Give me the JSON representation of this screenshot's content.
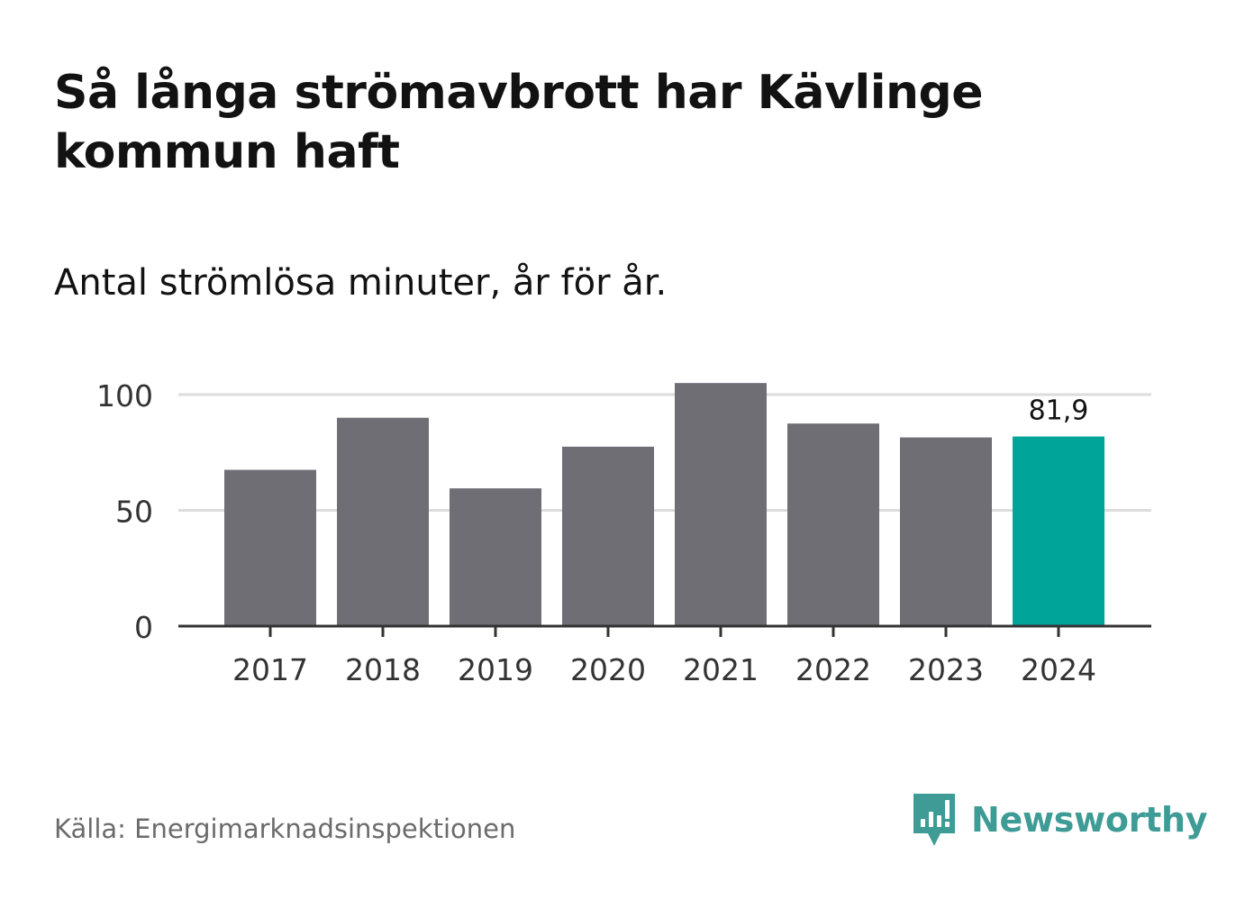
{
  "header": {
    "title": "Så långa strömavbrott har Kävlinge kommun haft",
    "subtitle": "Antal strömlösa minuter, år för år."
  },
  "footer": {
    "source": "Källa: Energimarknadsinspektionen",
    "brand_name": "Newsworthy",
    "brand_icon": "newsworthy-logo-icon"
  },
  "colors": {
    "bar": "#6f6e75",
    "highlight": "#00a499",
    "gridline": "#dcdcdc",
    "axis": "#333333",
    "brand": "#3e9b95"
  },
  "chart_data": {
    "type": "bar",
    "title": "Så långa strömavbrott har Kävlinge kommun haft",
    "subtitle": "Antal strömlösa minuter, år för år.",
    "xlabel": "",
    "ylabel": "",
    "categories": [
      "2017",
      "2018",
      "2019",
      "2020",
      "2021",
      "2022",
      "2023",
      "2024"
    ],
    "values": [
      67.5,
      90,
      59.5,
      77.5,
      105,
      87.5,
      81.5,
      81.9
    ],
    "highlight_index": 7,
    "data_labels": [
      {
        "index": 7,
        "text": "81,9"
      }
    ],
    "ylim": [
      0,
      100
    ],
    "yticks": [
      0,
      50,
      100
    ],
    "ytick_labels": [
      "0",
      "50",
      "100"
    ],
    "grid": true,
    "legend": "none"
  }
}
